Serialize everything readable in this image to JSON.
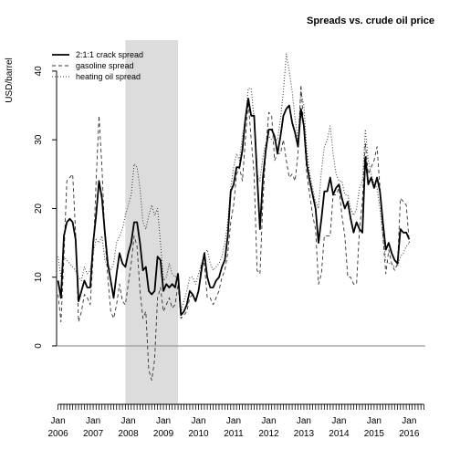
{
  "chart_data": {
    "type": "line",
    "title": "Spreads vs. crude oil price",
    "ylabel": "USD/barrel",
    "ylim": [
      -8.5,
      44.5
    ],
    "yticks": [
      0,
      10,
      20,
      30,
      40
    ],
    "x_start": "2006-01",
    "x_end": "2016-06",
    "xtick_labels": [
      {
        "month": "Jan",
        "year": "2006"
      },
      {
        "month": "Jan",
        "year": "2007"
      },
      {
        "month": "Jan",
        "year": "2008"
      },
      {
        "month": "Jan",
        "year": "2009"
      },
      {
        "month": "Jan",
        "year": "2010"
      },
      {
        "month": "Jan",
        "year": "2011"
      },
      {
        "month": "Jan",
        "year": "2012"
      },
      {
        "month": "Jan",
        "year": "2013"
      },
      {
        "month": "Jan",
        "year": "2014"
      },
      {
        "month": "Jan",
        "year": "2015"
      },
      {
        "month": "Jan",
        "year": "2016"
      }
    ],
    "shaded_period": [
      "2007-12",
      "2009-06"
    ],
    "zero_line": true,
    "legend_position": "top-left",
    "series": [
      {
        "name": "2:1:1 crack spread",
        "line_style": "solid",
        "values": [
          9.5,
          7.0,
          16.0,
          18.0,
          18.5,
          18.0,
          15.5,
          6.5,
          8.0,
          9.5,
          8.5,
          8.5,
          15.0,
          19.0,
          24.0,
          21.5,
          16.5,
          12.0,
          9.5,
          7.0,
          10.5,
          13.5,
          12.0,
          11.5,
          13.5,
          15.0,
          18.0,
          18.0,
          15.0,
          11.0,
          11.5,
          8.0,
          7.5,
          8.0,
          13.0,
          12.5,
          8.0,
          9.0,
          8.5,
          9.0,
          8.5,
          10.5,
          4.5,
          5.0,
          6.0,
          8.0,
          7.5,
          6.5,
          8.0,
          11.0,
          13.5,
          10.0,
          8.5,
          8.5,
          9.5,
          10.0,
          11.5,
          12.5,
          16.0,
          22.5,
          23.5,
          26.0,
          26.0,
          28.5,
          33.0,
          36.0,
          33.5,
          33.5,
          25.0,
          17.0,
          24.5,
          28.5,
          31.5,
          31.5,
          30.5,
          28.0,
          30.5,
          33.5,
          34.5,
          35.0,
          32.5,
          31.0,
          29.0,
          34.5,
          32.0,
          26.5,
          24.0,
          22.0,
          20.0,
          15.0,
          18.5,
          22.5,
          22.5,
          24.5,
          22.0,
          23.0,
          23.5,
          21.5,
          20.0,
          21.0,
          18.5,
          16.5,
          18.0,
          17.0,
          16.5,
          27.5,
          23.5,
          24.5,
          23.0,
          24.5,
          22.5,
          18.0,
          14.0,
          15.0,
          13.5,
          12.5,
          12.0,
          17.0,
          16.5,
          16.5,
          15.5
        ]
      },
      {
        "name": "gasoline spread",
        "line_style": "dashed",
        "values": [
          7.5,
          3.5,
          13.0,
          24.0,
          24.5,
          25.0,
          16.5,
          3.5,
          5.0,
          7.5,
          7.0,
          6.0,
          13.0,
          24.0,
          33.5,
          26.0,
          16.0,
          10.0,
          5.0,
          4.0,
          6.0,
          9.0,
          6.5,
          6.0,
          9.0,
          12.0,
          16.0,
          14.5,
          8.0,
          4.0,
          5.0,
          -3.5,
          -5.0,
          -2.0,
          7.0,
          8.5,
          5.0,
          6.0,
          7.0,
          5.5,
          6.0,
          9.0,
          4.0,
          4.5,
          5.0,
          7.0,
          7.5,
          6.5,
          8.0,
          12.0,
          12.0,
          7.0,
          7.0,
          6.0,
          7.0,
          8.0,
          10.0,
          11.0,
          13.5,
          18.0,
          20.5,
          25.0,
          26.0,
          24.0,
          30.0,
          35.5,
          30.0,
          25.0,
          11.0,
          10.5,
          21.0,
          28.5,
          34.0,
          33.5,
          27.0,
          28.0,
          28.0,
          30.0,
          27.0,
          24.5,
          25.0,
          24.0,
          28.0,
          38.0,
          31.5,
          25.0,
          22.0,
          19.0,
          17.0,
          9.0,
          10.5,
          16.0,
          16.0,
          16.0,
          22.0,
          22.0,
          23.0,
          19.0,
          16.0,
          10.0,
          10.0,
          9.0,
          9.0,
          17.0,
          21.0,
          29.5,
          25.0,
          26.0,
          27.0,
          29.0,
          23.0,
          16.0,
          10.5,
          14.0,
          12.0,
          11.0,
          12.0,
          21.5,
          21.0,
          20.5,
          15.0
        ]
      },
      {
        "name": "heating oil spread",
        "line_style": "dotted",
        "values": [
          13.0,
          10.0,
          13.0,
          12.5,
          12.0,
          11.5,
          11.0,
          10.0,
          9.5,
          11.5,
          10.5,
          11.0,
          13.5,
          15.5,
          15.0,
          16.0,
          12.5,
          11.5,
          11.0,
          12.0,
          15.0,
          16.0,
          17.0,
          19.0,
          20.5,
          22.0,
          26.5,
          26.0,
          23.0,
          18.0,
          17.0,
          19.0,
          20.5,
          19.0,
          20.0,
          15.0,
          9.5,
          10.0,
          12.0,
          10.5,
          10.0,
          10.5,
          5.0,
          6.5,
          8.0,
          10.0,
          10.0,
          9.0,
          10.5,
          12.0,
          13.5,
          14.0,
          12.0,
          11.0,
          11.5,
          12.0,
          13.0,
          15.0,
          18.0,
          23.0,
          26.0,
          28.0,
          27.0,
          30.5,
          33.0,
          37.5,
          37.5,
          33.0,
          25.0,
          24.0,
          27.5,
          29.5,
          30.5,
          30.0,
          30.0,
          30.0,
          33.0,
          37.0,
          42.5,
          40.0,
          37.0,
          33.0,
          30.0,
          37.0,
          35.0,
          28.5,
          25.0,
          23.0,
          21.0,
          20.0,
          25.5,
          29.0,
          30.0,
          32.0,
          28.0,
          25.0,
          24.0,
          24.0,
          22.0,
          22.0,
          20.0,
          19.0,
          20.0,
          23.0,
          24.0,
          31.5,
          27.0,
          25.0,
          23.5,
          23.0,
          20.0,
          16.0,
          12.5,
          12.0,
          12.0,
          11.5,
          11.5,
          13.0,
          13.5,
          14.5,
          15.0
        ]
      }
    ]
  }
}
